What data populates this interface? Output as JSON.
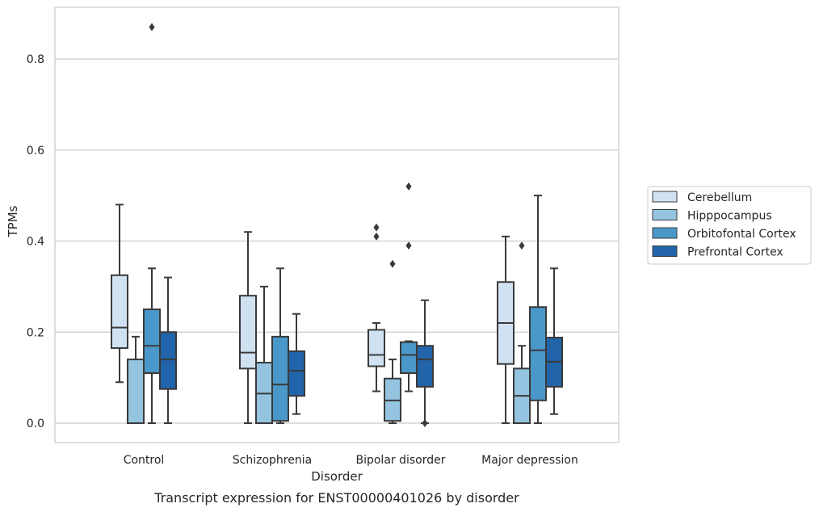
{
  "chart_data": {
    "type": "box",
    "xlabel": "Disorder",
    "ylabel": "TPMs",
    "caption": "Transcript expression for ENST00000401026 by disorder",
    "ylim": [
      -0.04,
      0.92
    ],
    "yticks": [
      0.0,
      0.2,
      0.4,
      0.6,
      0.8
    ],
    "ytick_labels": [
      "0.0",
      "0.2",
      "0.4",
      "0.6",
      "0.8"
    ],
    "grid": "horizontal",
    "legend_position": "right",
    "categories": [
      "Control",
      "Schizophrenia",
      "Bipolar disorder",
      "Major depression"
    ],
    "series": [
      {
        "name": "Cerebellum",
        "color": "#d0e1f2",
        "boxes": [
          {
            "whislo": 0.09,
            "q1": 0.165,
            "med": 0.21,
            "q3": 0.325,
            "whishi": 0.48,
            "fliers": []
          },
          {
            "whislo": 0.0,
            "q1": 0.12,
            "med": 0.155,
            "q3": 0.28,
            "whishi": 0.42,
            "fliers": []
          },
          {
            "whislo": 0.07,
            "q1": 0.125,
            "med": 0.15,
            "q3": 0.205,
            "whishi": 0.22,
            "fliers": [
              0.41,
              0.43
            ]
          },
          {
            "whislo": 0.0,
            "q1": 0.13,
            "med": 0.22,
            "q3": 0.31,
            "whishi": 0.41,
            "fliers": []
          }
        ]
      },
      {
        "name": "Hipppocampus",
        "color": "#94c4df",
        "boxes": [
          {
            "whislo": 0.0,
            "q1": 0.0,
            "med": 0.0,
            "q3": 0.14,
            "whishi": 0.19,
            "fliers": []
          },
          {
            "whislo": 0.0,
            "q1": 0.0,
            "med": 0.065,
            "q3": 0.133,
            "whishi": 0.3,
            "fliers": []
          },
          {
            "whislo": 0.0,
            "q1": 0.005,
            "med": 0.05,
            "q3": 0.098,
            "whishi": 0.14,
            "fliers": [
              0.35
            ]
          },
          {
            "whislo": 0.0,
            "q1": 0.0,
            "med": 0.06,
            "q3": 0.12,
            "whishi": 0.17,
            "fliers": [
              0.39
            ]
          }
        ]
      },
      {
        "name": "Orbitofontal Cortex",
        "color": "#4a98c9",
        "boxes": [
          {
            "whislo": 0.0,
            "q1": 0.11,
            "med": 0.17,
            "q3": 0.25,
            "whishi": 0.34,
            "fliers": [
              0.87
            ]
          },
          {
            "whislo": 0.0,
            "q1": 0.005,
            "med": 0.085,
            "q3": 0.19,
            "whishi": 0.34,
            "fliers": []
          },
          {
            "whislo": 0.07,
            "q1": 0.11,
            "med": 0.15,
            "q3": 0.178,
            "whishi": 0.18,
            "fliers": [
              0.39,
              0.52
            ]
          },
          {
            "whislo": 0.0,
            "q1": 0.05,
            "med": 0.16,
            "q3": 0.255,
            "whishi": 0.5,
            "fliers": []
          }
        ]
      },
      {
        "name": "Prefrontal Cortex",
        "color": "#2264aa",
        "boxes": [
          {
            "whislo": 0.0,
            "q1": 0.075,
            "med": 0.14,
            "q3": 0.2,
            "whishi": 0.32,
            "fliers": []
          },
          {
            "whislo": 0.02,
            "q1": 0.06,
            "med": 0.115,
            "q3": 0.158,
            "whishi": 0.24,
            "fliers": []
          },
          {
            "whislo": 0.0,
            "q1": 0.08,
            "med": 0.14,
            "q3": 0.17,
            "whishi": 0.27,
            "fliers": [
              0.0
            ]
          },
          {
            "whislo": 0.02,
            "q1": 0.08,
            "med": 0.135,
            "q3": 0.188,
            "whishi": 0.34,
            "fliers": []
          }
        ]
      }
    ]
  }
}
